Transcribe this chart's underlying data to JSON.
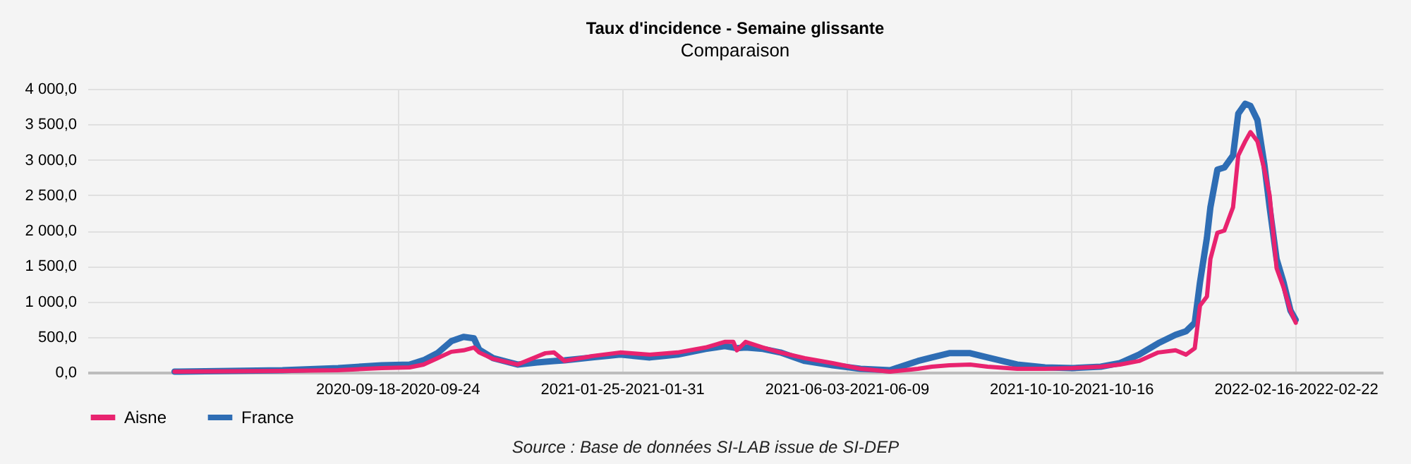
{
  "chart_data": {
    "type": "line",
    "title": "Taux d'incidence - Semaine glissante",
    "subtitle": "Comparaison",
    "annotations": [
      "Source : Base de données SI-LAB issue de SI-DEP"
    ],
    "x": [
      "2020-05-13",
      "2020-07-14",
      "2020-08-15",
      "2020-09-09",
      "2020-09-25",
      "2020-10-03",
      "2020-10-11",
      "2020-10-19",
      "2020-10-26",
      "2020-11-01",
      "2020-11-04",
      "2020-11-12",
      "2020-11-26",
      "2020-12-12",
      "2020-12-17",
      "2020-12-23",
      "2021-01-08",
      "2021-01-24",
      "2021-02-10",
      "2021-02-26",
      "2021-03-14",
      "2021-03-25",
      "2021-03-30",
      "2021-04-01",
      "2021-04-06",
      "2021-04-16",
      "2021-04-26",
      "2021-05-10",
      "2021-05-26",
      "2021-06-11",
      "2021-06-28",
      "2021-07-14",
      "2021-07-22",
      "2021-08-01",
      "2021-08-13",
      "2021-08-23",
      "2021-09-09",
      "2021-09-25",
      "2021-10-11",
      "2021-10-27",
      "2021-11-07",
      "2021-11-18",
      "2021-11-29",
      "2021-12-09",
      "2021-12-15",
      "2021-12-20",
      "2021-12-23",
      "2021-12-27",
      "2021-12-29",
      "2022-01-02",
      "2022-01-06",
      "2022-01-11",
      "2022-01-14",
      "2022-01-18",
      "2022-01-21",
      "2022-01-25",
      "2022-01-29",
      "2022-02-01",
      "2022-02-05",
      "2022-02-09",
      "2022-02-13",
      "2022-02-16"
    ],
    "series": [
      {
        "name": "Aisne",
        "color": "#e8236f",
        "values": [
          10,
          20,
          30,
          60,
          70,
          110,
          200,
          290,
          310,
          350,
          280,
          190,
          110,
          270,
          280,
          160,
          230,
          280,
          250,
          280,
          350,
          430,
          430,
          310,
          430,
          350,
          280,
          200,
          130,
          50,
          10,
          50,
          80,
          100,
          110,
          80,
          50,
          50,
          60,
          80,
          110,
          160,
          280,
          310,
          250,
          340,
          940,
          1070,
          1600,
          1970,
          2000,
          2330,
          3060,
          3260,
          3390,
          3260,
          2860,
          2500,
          1470,
          1200,
          870,
          700
        ]
      },
      {
        "name": "France",
        "color": "#2e6db4",
        "values": [
          10,
          30,
          60,
          100,
          110,
          170,
          270,
          440,
          500,
          480,
          320,
          200,
          110,
          150,
          160,
          170,
          210,
          250,
          210,
          250,
          330,
          370,
          350,
          340,
          350,
          330,
          280,
          160,
          100,
          50,
          30,
          160,
          210,
          270,
          270,
          210,
          110,
          70,
          60,
          80,
          130,
          250,
          410,
          530,
          580,
          700,
          1270,
          1900,
          2330,
          2860,
          2890,
          3060,
          3650,
          3790,
          3760,
          3560,
          2930,
          2330,
          1600,
          1270,
          870,
          740
        ]
      }
    ],
    "xlim": [
      "2020-03-24",
      "2022-04-07"
    ],
    "xticks": [
      {
        "value": "2020-09-18",
        "label": "2020-09-18-2020-09-24"
      },
      {
        "value": "2021-01-25",
        "label": "2021-01-25-2021-01-31"
      },
      {
        "value": "2021-06-03",
        "label": "2021-06-03-2021-06-09"
      },
      {
        "value": "2021-10-10",
        "label": "2021-10-10-2021-10-16"
      },
      {
        "value": "2022-02-16",
        "label": "2022-02-16-2022-02-22"
      }
    ],
    "ylim": [
      0,
      4000
    ],
    "yticks": [
      {
        "value": 0,
        "label": "0,0"
      },
      {
        "value": 500,
        "label": "500,0"
      },
      {
        "value": 1000,
        "label": "1 000,0"
      },
      {
        "value": 1500,
        "label": "1 500,0"
      },
      {
        "value": 2000,
        "label": "2 000,0"
      },
      {
        "value": 2500,
        "label": "2 500,0"
      },
      {
        "value": 3000,
        "label": "3 000,0"
      },
      {
        "value": 3500,
        "label": "3 500,0"
      },
      {
        "value": 4000,
        "label": "4 000,0"
      }
    ],
    "grid": true,
    "legend": "bottom",
    "marker": "none",
    "line_style": "solid"
  }
}
